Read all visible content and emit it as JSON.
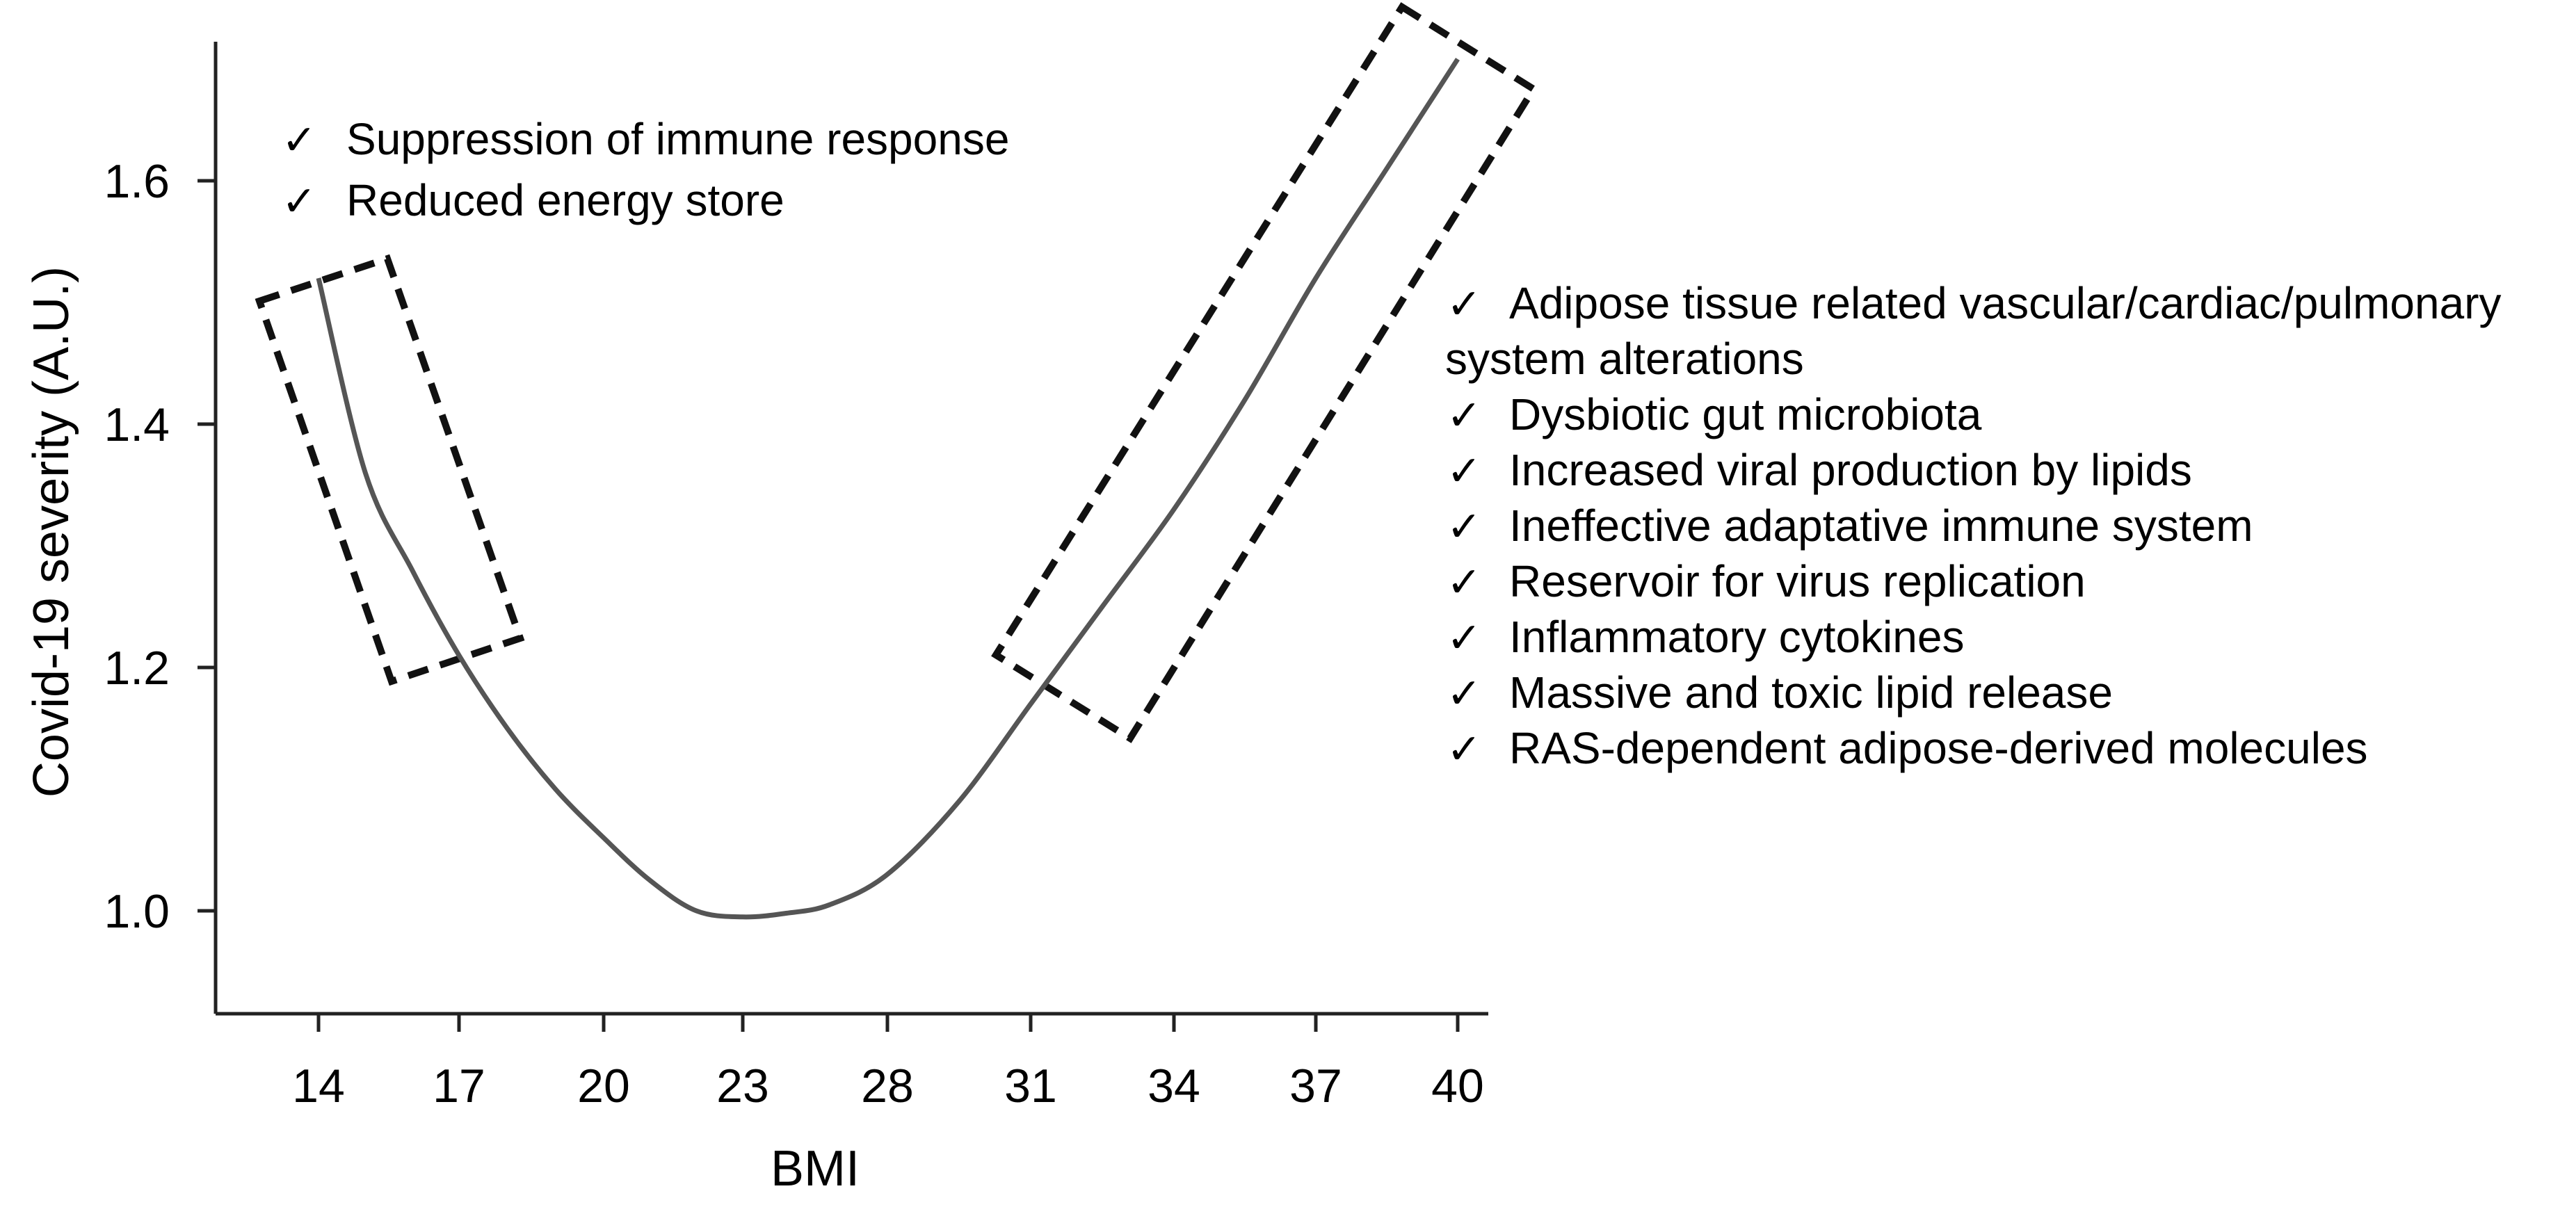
{
  "chart_data": {
    "type": "line",
    "title": "",
    "xlabel": "BMI",
    "ylabel": "Covid-19 severity (A.U.)",
    "x_ticks": [
      "14",
      "17",
      "20",
      "23",
      "28",
      "31",
      "34",
      "37",
      "40"
    ],
    "y_ticks": [
      "1.0",
      "1.2",
      "1.4",
      "1.6"
    ],
    "ylim": [
      0.92,
      1.72
    ],
    "grid": false,
    "series": [
      {
        "color": "#555555",
        "points": [
          {
            "x": 14,
            "y": 1.52
          },
          {
            "x": 15,
            "y": 1.36
          },
          {
            "x": 16,
            "y": 1.28
          },
          {
            "x": 17,
            "y": 1.21
          },
          {
            "x": 18,
            "y": 1.15
          },
          {
            "x": 19,
            "y": 1.1
          },
          {
            "x": 20,
            "y": 1.06
          },
          {
            "x": 21,
            "y": 1.025
          },
          {
            "x": 22,
            "y": 1.0
          },
          {
            "x": 23,
            "y": 0.995
          },
          {
            "x": 24.5,
            "y": 0.998
          },
          {
            "x": 26,
            "y": 1.005
          },
          {
            "x": 28,
            "y": 1.03
          },
          {
            "x": 29.5,
            "y": 1.09
          },
          {
            "x": 31,
            "y": 1.17
          },
          {
            "x": 32.5,
            "y": 1.25
          },
          {
            "x": 34,
            "y": 1.33
          },
          {
            "x": 35.5,
            "y": 1.42
          },
          {
            "x": 37,
            "y": 1.52
          },
          {
            "x": 38.5,
            "y": 1.61
          },
          {
            "x": 40,
            "y": 1.7
          }
        ]
      }
    ],
    "highlight_regions": [
      {
        "name": "low-bmi-box",
        "x_range": [
          14,
          17
        ],
        "y_range": [
          1.21,
          1.52
        ]
      },
      {
        "name": "high-bmi-box",
        "x_range": [
          31,
          40
        ],
        "y_range": [
          1.17,
          1.7
        ]
      }
    ],
    "annotations": {
      "check_mark": "✓",
      "low_bmi": [
        "Suppression of immune response",
        "Reduced energy store"
      ],
      "high_bmi": [
        "Adipose tissue related vascular/cardiac/pulmonary",
        "system alterations",
        "Dysbiotic gut microbiota",
        "Increased viral production by lipids",
        "Ineffective adaptative immune system",
        "Reservoir for virus replication",
        "Inflammatory cytokines",
        "Massive and toxic lipid release",
        "RAS-dependent adipose-derived molecules"
      ],
      "high_bmi_checked": [
        true,
        false,
        true,
        true,
        true,
        true,
        true,
        true,
        true
      ]
    }
  }
}
